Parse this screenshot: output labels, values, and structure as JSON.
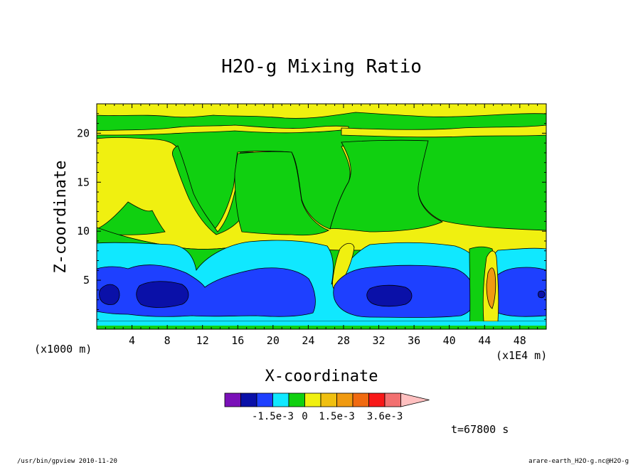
{
  "chart_data": {
    "type": "heatmap",
    "subtype": "filled-contour",
    "title": "H2O-g Mixing Ratio",
    "xlabel": "X-coordinate",
    "ylabel": "Z-coordinate",
    "x_unit_left": "(x1000 m)",
    "x_unit_right": "(x1E4 m)",
    "xlim": [
      0,
      51
    ],
    "ylim": [
      0,
      23
    ],
    "xticks": [
      4,
      8,
      12,
      16,
      20,
      24,
      28,
      32,
      36,
      40,
      44,
      48
    ],
    "xtick_labels": [
      "4",
      "8",
      "12",
      "16",
      "20",
      "24",
      "28",
      "32",
      "36",
      "40",
      "44",
      "48"
    ],
    "yticks": [
      5,
      10,
      15,
      20
    ],
    "ytick_labels": [
      "5",
      "10",
      "15",
      "20"
    ],
    "grid": false,
    "colorbar": {
      "colors": [
        "#7a10b8",
        "#0a10a8",
        "#1e40ff",
        "#10e8ff",
        "#10d010",
        "#f0f010",
        "#f0c010",
        "#f09a10",
        "#f06a10",
        "#f81818",
        "#f27070",
        "#ffc0c0"
      ],
      "labels": [
        "-1.5e-3",
        "0",
        "1.5e-3",
        "3.6e-3"
      ],
      "label_after_box": [
        3,
        5,
        7,
        10
      ]
    },
    "time_label": "t=67800 s",
    "regions": [
      {
        "level": "green-upper",
        "color": "#10d010",
        "note": "band z 18.8-22"
      },
      {
        "level": "yellow",
        "color": "#f0f010",
        "note": "z 9-18.8"
      },
      {
        "level": "green",
        "color": "#10d010",
        "note": "z 7-11 and columns x 16-24, 28-36"
      },
      {
        "level": "cyan",
        "color": "#10e8ff",
        "note": "z 0.8-9"
      },
      {
        "level": "blue",
        "color": "#1e40ff",
        "note": "z 1.3-6.5"
      },
      {
        "level": "dark-blue",
        "color": "#0a10a8",
        "note": "cores near x 3, 8, 32"
      },
      {
        "level": "orange",
        "color": "#f09a10",
        "note": "plume near x 44-45"
      }
    ]
  },
  "footer": {
    "left": "/usr/bin/gpview   2010-11-20",
    "right": "arare-earth_H2O-g.nc@H2O-g"
  }
}
